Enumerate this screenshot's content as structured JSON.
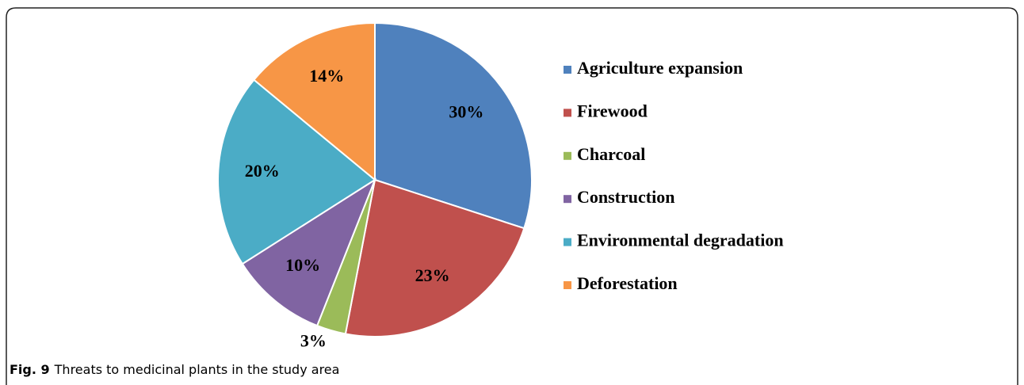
{
  "chart_data": {
    "type": "pie",
    "categories": [
      "Agriculture expansion",
      "Firewood",
      "Charcoal",
      "Construction",
      "Environmental degradation",
      "Deforestation"
    ],
    "values": [
      30,
      23,
      3,
      10,
      20,
      14
    ],
    "value_labels": [
      "30%",
      "23%",
      "3%",
      "10%",
      "20%",
      "14%"
    ],
    "colors": [
      "#4f81bd",
      "#c0504d",
      "#9bbb59",
      "#8064a2",
      "#4bacc6",
      "#f79646"
    ],
    "legend": "right"
  },
  "figure": {
    "label": "Fig. 9",
    "caption": "Threats to medicinal plants in the study area"
  }
}
